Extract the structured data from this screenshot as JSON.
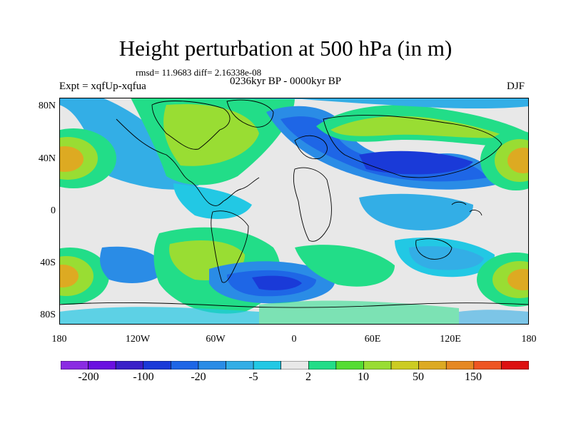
{
  "header": {
    "title": "Height perturbation at 500 hPa (in m)",
    "stats": "rmsd= 11.9683 diff= 2.16338e-08",
    "experiment": "Expt = xqfUp-xqfua",
    "period": "0236kyr BP - 0000kyr BP",
    "season": "DJF"
  },
  "axes": {
    "lat_ticks": [
      "80N",
      "40N",
      "0",
      "40S",
      "80S"
    ],
    "lon_ticks": [
      "180",
      "120W",
      "60W",
      "0",
      "60E",
      "120E",
      "180"
    ]
  },
  "colorbar": {
    "colors": [
      "#8a2be2",
      "#6a0fe0",
      "#3a20c8",
      "#1a3ad8",
      "#1e66e6",
      "#2a8ce6",
      "#33aee6",
      "#22c8e4",
      "#e8e8e8",
      "#22dd88",
      "#55dd33",
      "#99dd33",
      "#cccc22",
      "#ddaa22",
      "#e68822",
      "#ee5522",
      "#dd1111"
    ],
    "labels": [
      "-200",
      "-100",
      "-20",
      "-5",
      "2",
      "10",
      "50",
      "150"
    ]
  },
  "colors": {
    "background": "#e8e8e8",
    "coast": "#000000"
  }
}
